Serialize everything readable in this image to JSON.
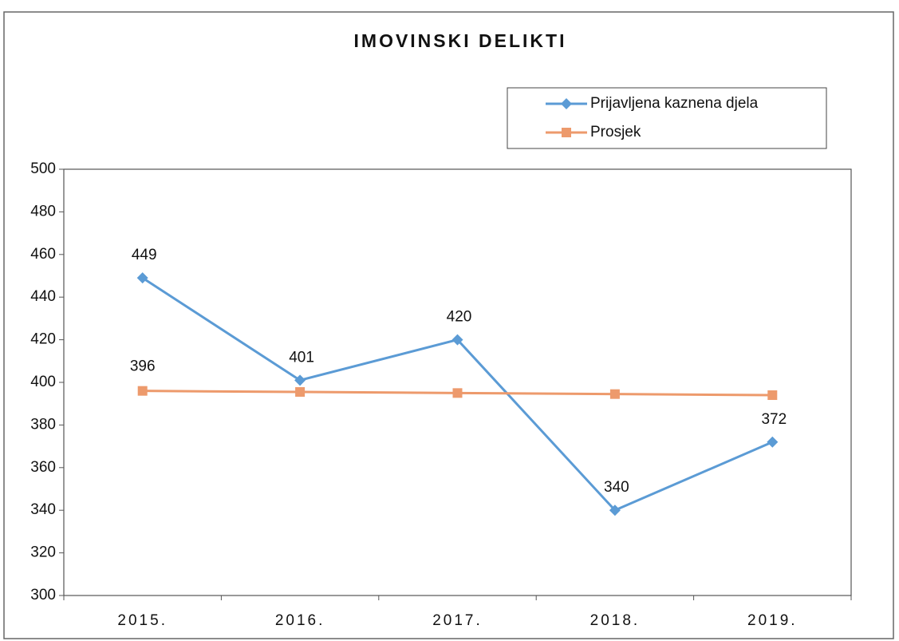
{
  "chart_data": {
    "type": "line",
    "title": "IMOVINSKI DELIKTI",
    "categories": [
      "2015.",
      "2016.",
      "2017.",
      "2018.",
      "2019."
    ],
    "series": [
      {
        "name": "Prijavljena kaznena djela",
        "color": "#5b9bd5",
        "marker": "diamond",
        "values": [
          449,
          401,
          420,
          340,
          372
        ]
      },
      {
        "name": "Prosjek",
        "color": "#ed9a6c",
        "marker": "square",
        "values": [
          396,
          395.5,
          395,
          394.5,
          394
        ],
        "value_labels": [
          "396",
          null,
          null,
          null,
          null
        ]
      }
    ],
    "ylim": [
      300,
      500
    ],
    "yticks": [
      300,
      320,
      340,
      360,
      380,
      400,
      420,
      440,
      460,
      480,
      500
    ],
    "legend": "top-right"
  }
}
